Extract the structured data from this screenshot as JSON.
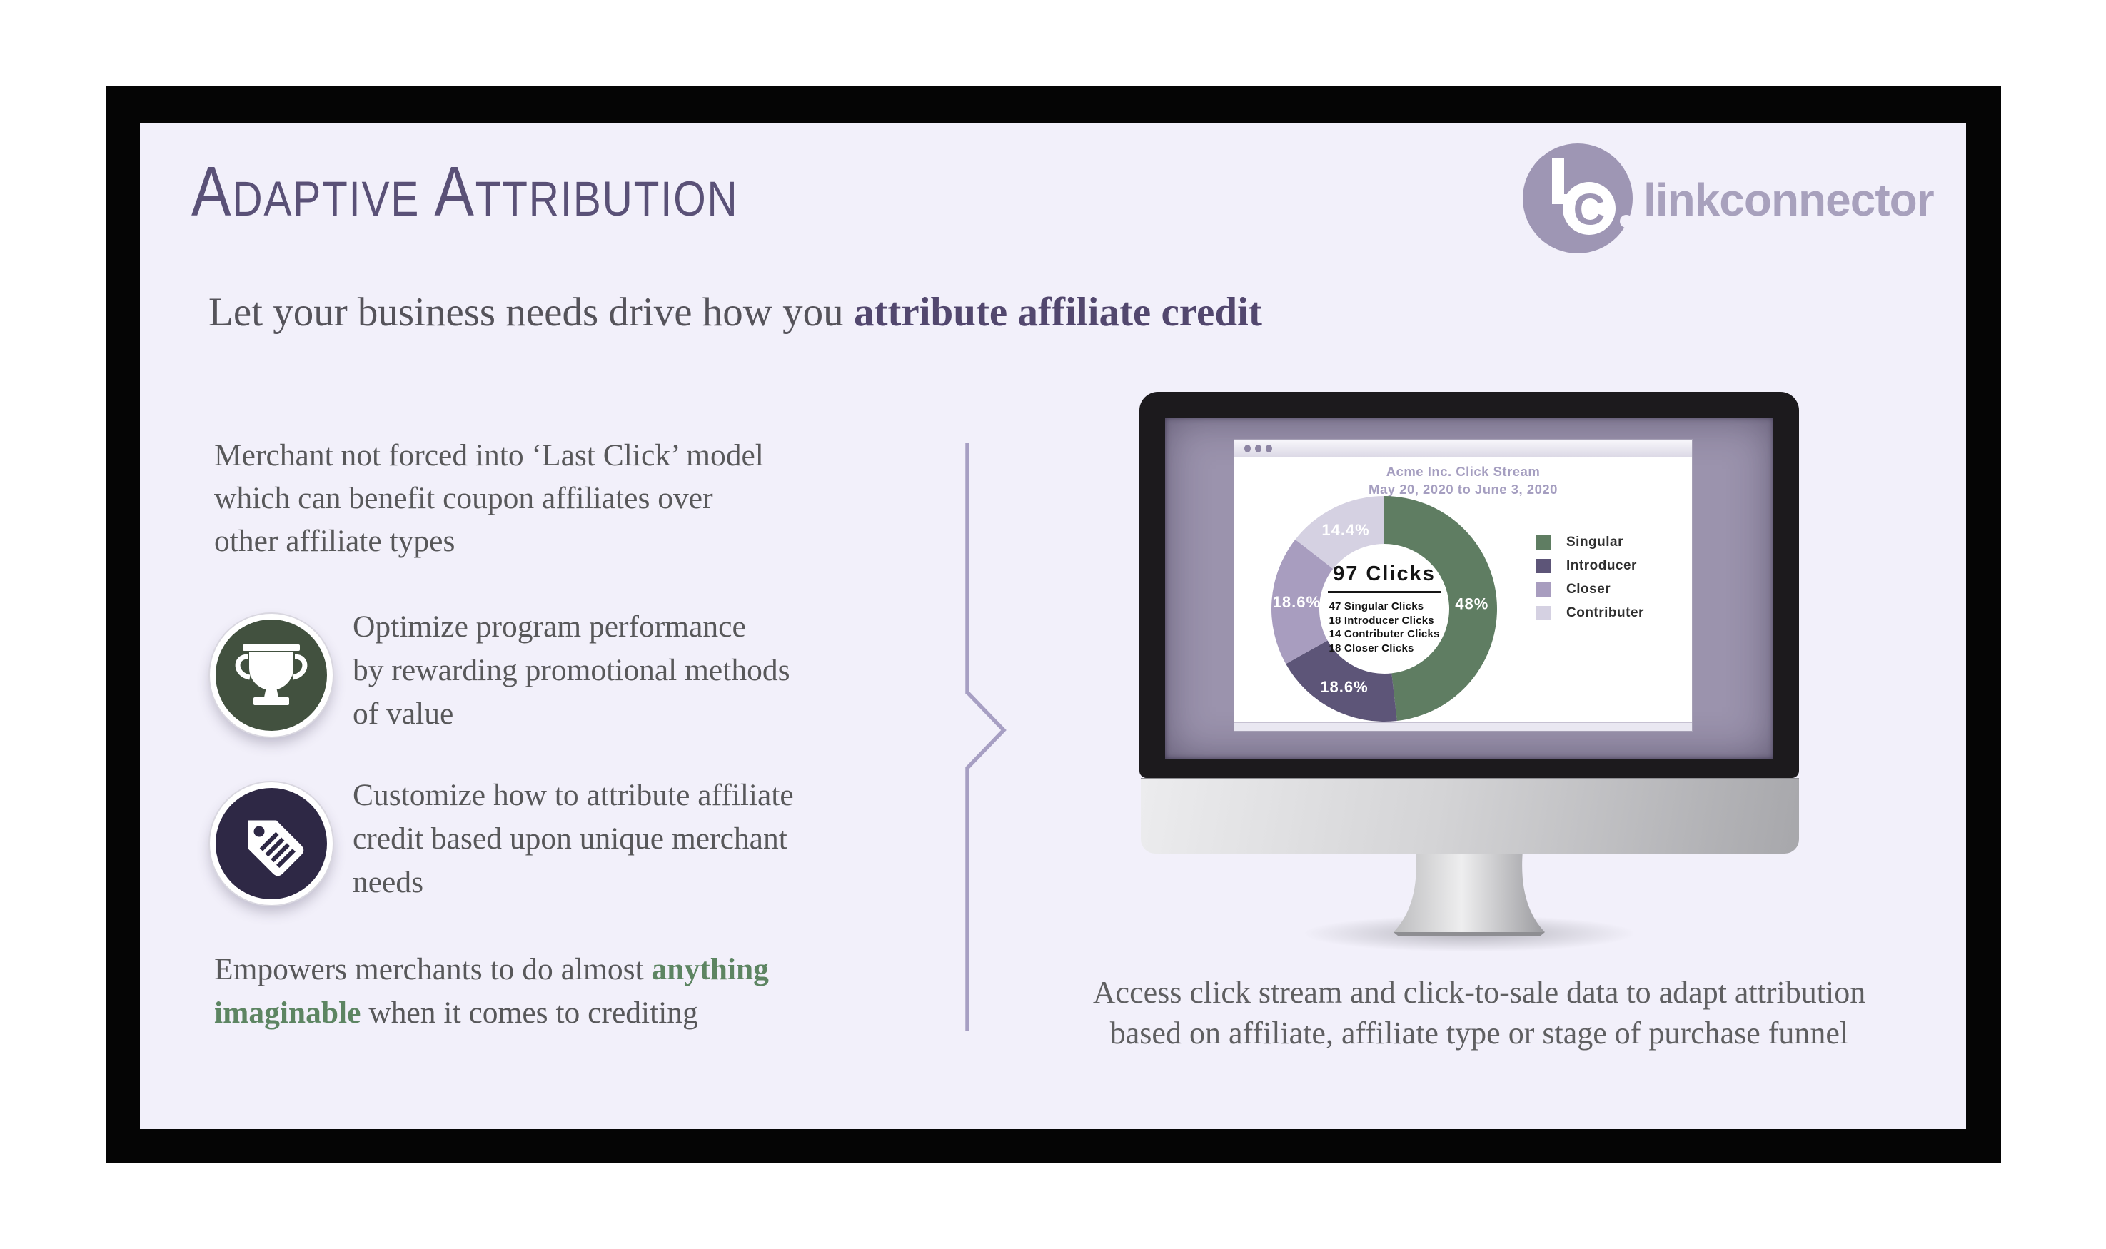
{
  "slide": {
    "title": "Adaptive Attribution",
    "subtitle_prefix": "Let your business needs drive how you ",
    "subtitle_accent": "attribute affiliate credit",
    "brand": {
      "name": "linkconnector",
      "monogram_c": "C"
    },
    "left": {
      "para1_lines": [
        "Merchant not forced into ‘Last Click’ model",
        "which can benefit coupon affiliates over",
        "other affiliate types"
      ],
      "bullet1_lines": [
        "Optimize program performance",
        "by rewarding promotional methods",
        "of value"
      ],
      "bullet2_lines": [
        "Customize how to attribute affiliate",
        "credit based upon unique merchant",
        "needs"
      ],
      "para2_l1_text": "Empowers merchants to do almost ",
      "para2_l1_accent": "anything",
      "para2_l2_accent": "imaginable",
      "para2_l2_text": " when it comes to crediting"
    },
    "caption_lines": [
      "Access click stream and click-to-sale data to adapt attribution",
      "based on affiliate, affiliate type or stage of purchase funnel"
    ]
  },
  "chart_data": {
    "type": "pie",
    "style": "donut",
    "title": "Acme Inc. Click Stream",
    "subtitle": "May 20, 2020 to June 3, 2020",
    "total_clicks": 97,
    "center_title": "97 Clicks",
    "center_lines": [
      "47 Singular Clicks",
      "18 Introducer Clicks",
      "14 Contributer Clicks",
      "18 Closer Clicks"
    ],
    "series": [
      {
        "name": "Singular",
        "clicks": 47,
        "percent": 48,
        "label": "48%",
        "color": "#5f7d62"
      },
      {
        "name": "Introducer",
        "clicks": 18,
        "percent": 18.6,
        "label": "18.6%",
        "color": "#5d5578"
      },
      {
        "name": "Closer",
        "clicks": 18,
        "percent": 18.6,
        "label": "18.6%",
        "color": "#a89dbf"
      },
      {
        "name": "Contributer",
        "clicks": 14,
        "percent": 14.4,
        "label": "14.4%",
        "color": "#d5d1e2"
      }
    ],
    "legend": [
      {
        "label": "Singular",
        "color": "#5f7d62"
      },
      {
        "label": "Introducer",
        "color": "#5d5578"
      },
      {
        "label": "Closer",
        "color": "#a89dbf"
      },
      {
        "label": "Contributer",
        "color": "#d5d1e2"
      }
    ],
    "legend_position": "right",
    "label_color": "#ffffff",
    "start_angle_deg": 0,
    "direction": "clockwise"
  },
  "colors": {
    "slide_bg": "#f2f0fa",
    "frame": "#050505",
    "title": "#5a5177",
    "subtitle_accent": "#52476e",
    "body_text": "#58585a",
    "green_accent": "#5d8562",
    "divider": "#a79fc3",
    "brand": "#a8a1bd",
    "trophy_circle": "#42513f",
    "tag_circle": "#2e2845",
    "screen_bg": "#9b93ad"
  }
}
